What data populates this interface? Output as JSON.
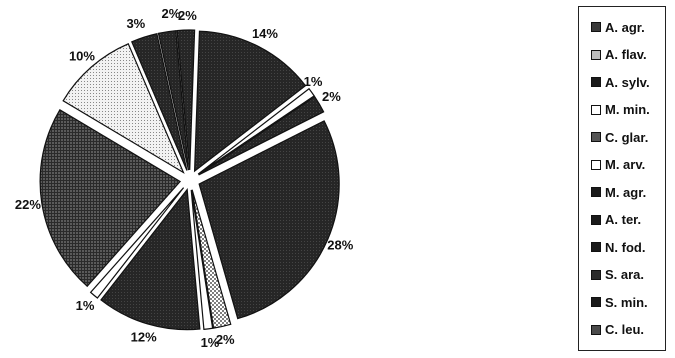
{
  "chart_data": {
    "type": "pie",
    "title": "",
    "legend_position": "right",
    "slices": [
      {
        "label": "2%",
        "value": 2,
        "legend": "A. agr.",
        "fill": "#3a3a3a",
        "pattern": "dark"
      },
      {
        "label": "28%",
        "value": 28,
        "legend": "A. flav.",
        "fill": "#242424",
        "pattern": "dark"
      },
      {
        "label": "2%",
        "value": 2,
        "legend": "A. sylv.",
        "fill": "#d4d4d4",
        "pattern": "dots"
      },
      {
        "label": "1%",
        "value": 1,
        "legend": "M. min.",
        "fill": "#ffffff",
        "pattern": "none"
      },
      {
        "label": "12%",
        "value": 12,
        "legend": "C. glar.",
        "fill": "#1e1e1e",
        "pattern": "dark"
      },
      {
        "label": "1%",
        "value": 1,
        "legend": "M. arv.",
        "fill": "#ffffff",
        "pattern": "none"
      },
      {
        "label": "22%",
        "value": 22,
        "legend": "M. agr.",
        "fill": "#4a4a4a",
        "pattern": "grid"
      },
      {
        "label": "10%",
        "value": 10,
        "legend": "A. ter.",
        "fill": "#e6e6e6",
        "pattern": "light"
      },
      {
        "label": "3%",
        "value": 3,
        "legend": "N. fod.",
        "fill": "#2a2a2a",
        "pattern": "dark"
      },
      {
        "label": "2%",
        "value": 2,
        "legend": "S. ara.",
        "fill": "#303030",
        "pattern": "dark"
      },
      {
        "label": "2%",
        "value": 2,
        "legend": "S. min.",
        "fill": "#262626",
        "pattern": "dark"
      },
      {
        "label": "14%",
        "value": 14,
        "legend": "C. leu.",
        "fill": "#353535",
        "pattern": "dark"
      },
      {
        "label": "1%",
        "value": 1,
        "legend": "",
        "fill": "#ffffff",
        "pattern": "none"
      }
    ],
    "legend": [
      {
        "label": "A. agr.",
        "fill": "#3a3a3a"
      },
      {
        "label": "A. flav.",
        "fill": "#bdbdbd"
      },
      {
        "label": "A. sylv.",
        "fill": "#1a1a1a"
      },
      {
        "label": "M. min.",
        "fill": "#ffffff"
      },
      {
        "label": "C. glar.",
        "fill": "#555555"
      },
      {
        "label": "M. arv.",
        "fill": "#ffffff"
      },
      {
        "label": "M. agr.",
        "fill": "#1a1a1a"
      },
      {
        "label": "A. ter.",
        "fill": "#1a1a1a"
      },
      {
        "label": "N. fod.",
        "fill": "#1a1a1a"
      },
      {
        "label": "S. ara.",
        "fill": "#2a2a2a"
      },
      {
        "label": "S. min.",
        "fill": "#1a1a1a"
      },
      {
        "label": "C. leu.",
        "fill": "#4a4a4a"
      }
    ]
  }
}
